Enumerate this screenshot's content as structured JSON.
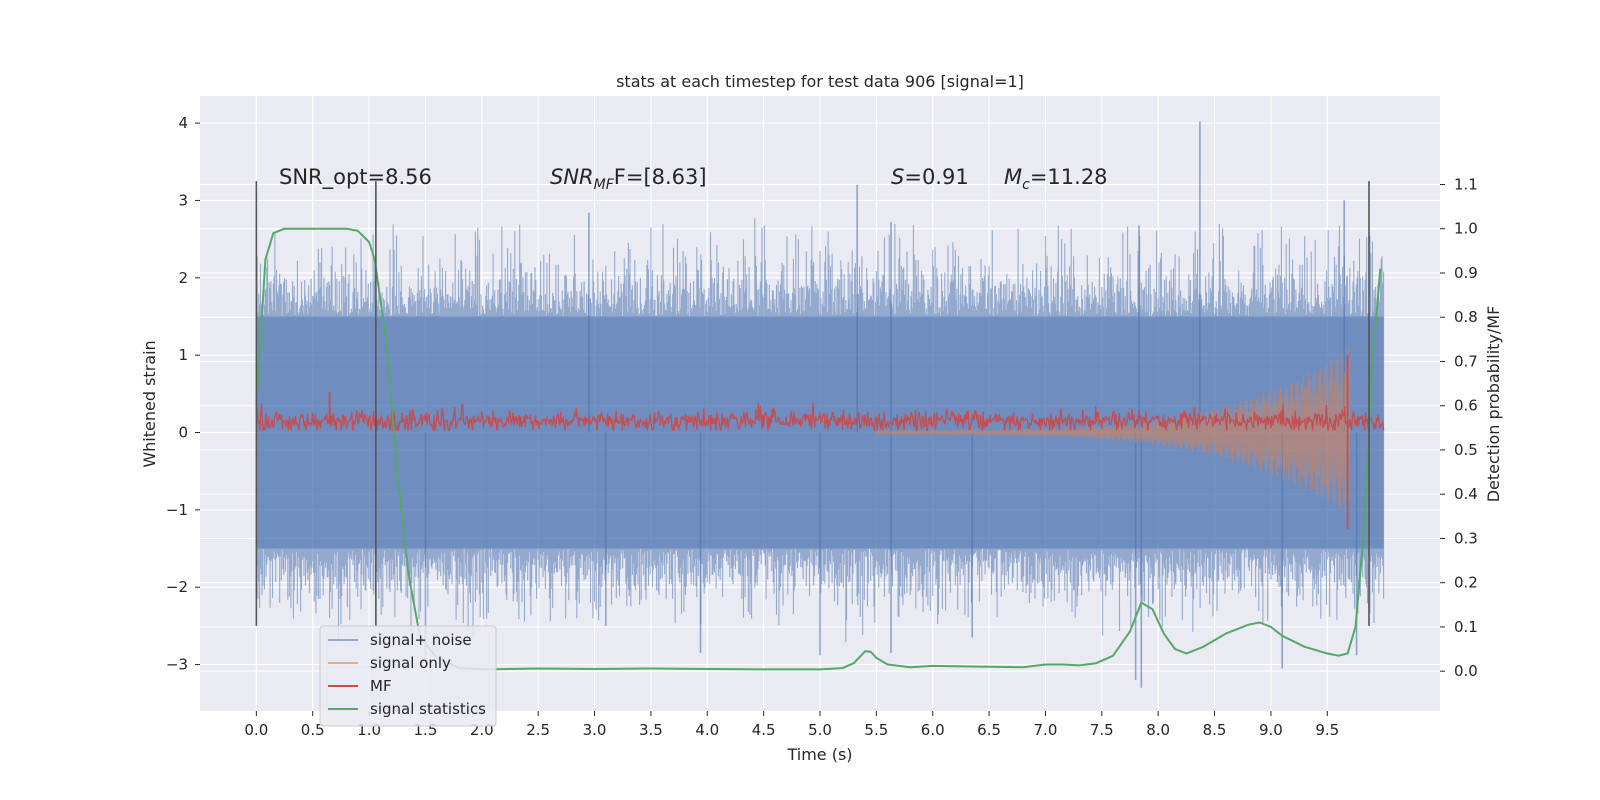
{
  "chart_data": {
    "type": "line",
    "title": "stats at each timestep for test data 906 [signal=1]",
    "xlabel": "Time (s)",
    "ylabel": "Whitened strain",
    "ylabel_right": "Detection probability/MF",
    "xlim": [
      -0.5,
      10.5
    ],
    "ylim": [
      -3.6,
      4.35
    ],
    "ylim_right": [
      -0.09,
      1.3
    ],
    "x_ticks": [
      "0.0",
      "0.5",
      "1.0",
      "1.5",
      "2.0",
      "2.5",
      "3.0",
      "3.5",
      "4.0",
      "4.5",
      "5.0",
      "5.5",
      "6.0",
      "6.5",
      "7.0",
      "7.5",
      "8.0",
      "8.5",
      "9.0",
      "9.5"
    ],
    "x_tick_values": [
      0,
      0.5,
      1,
      1.5,
      2,
      2.5,
      3,
      3.5,
      4,
      4.5,
      5,
      5.5,
      6,
      6.5,
      7,
      7.5,
      8,
      8.5,
      9,
      9.5
    ],
    "y_ticks": [
      "4",
      "3",
      "2",
      "1",
      "0",
      "−1",
      "−2",
      "−3"
    ],
    "y_tick_values": [
      4,
      3,
      2,
      1,
      0,
      -1,
      -2,
      -3
    ],
    "y_right_ticks": [
      "1.1",
      "1.0",
      "0.9",
      "0.8",
      "0.7",
      "0.6",
      "0.5",
      "0.4",
      "0.3",
      "0.2",
      "0.1",
      "0.0"
    ],
    "y_right_tick_values": [
      1.1,
      1.0,
      0.9,
      0.8,
      0.7,
      0.6,
      0.5,
      0.4,
      0.3,
      0.2,
      0.1,
      0.0
    ],
    "annotations": {
      "snr_opt": "SNR_opt=8.56",
      "snr_mf_sym": "SNR",
      "snr_mf_sub": "MF",
      "snr_mf_rest": "F=[8.63]",
      "s_sym": "S",
      "s_val": "=0.91",
      "mc_sym": "M",
      "mc_sub": "c",
      "mc_val": "=11.28"
    },
    "vlines": [
      {
        "x": 0.0,
        "y0": -2.5,
        "y1": 3.25
      },
      {
        "x": 1.06,
        "y0": -2.5,
        "y1": 3.25
      },
      {
        "x": 9.87,
        "y0": -2.5,
        "y1": 3.25
      }
    ],
    "legend": {
      "position": "lower-left",
      "items": [
        {
          "label": "signal+ noise",
          "color": "#4c72b0",
          "alpha": 0.55
        },
        {
          "label": "signal only",
          "color": "#dd8452",
          "alpha": 0.6
        },
        {
          "label": "MF",
          "color": "#c44e52",
          "alpha": 1
        },
        {
          "label": "signal statistics",
          "color": "#55a868",
          "alpha": 1
        }
      ]
    },
    "series": [
      {
        "name": "signal+ noise",
        "color": "#4c72b0",
        "x_range": [
          0.0,
          10.0
        ],
        "envelope": {
          "upper_typical": 1.5,
          "lower_typical": -1.5,
          "upper_peak": 2.7,
          "lower_peak": -2.5
        },
        "spikes": [
          {
            "x": 8.37,
            "y": 4.02
          },
          {
            "x": 5.33,
            "y": 3.2
          },
          {
            "x": 5.63,
            "y": 2.72
          },
          {
            "x": 2.95,
            "y": 2.84
          },
          {
            "x": 9.65,
            "y": 3.0
          },
          {
            "x": 7.83,
            "y": 2.68
          },
          {
            "x": 7.8,
            "y": -3.2
          },
          {
            "x": 7.85,
            "y": -3.3
          },
          {
            "x": 9.1,
            "y": -3.05
          },
          {
            "x": 3.94,
            "y": -2.85
          },
          {
            "x": 5.0,
            "y": -2.88
          },
          {
            "x": 5.63,
            "y": -2.85
          },
          {
            "x": 9.76,
            "y": -2.88
          },
          {
            "x": 6.35,
            "y": -2.65
          },
          {
            "x": 1.5,
            "y": -2.95
          },
          {
            "x": 3.1,
            "y": -2.5
          }
        ]
      },
      {
        "name": "signal only",
        "color": "#dd8452",
        "x_range": [
          5.5,
          9.7
        ],
        "amplitude_start": 0.03,
        "amplitude_end": 1.1
      },
      {
        "name": "MF",
        "color": "#c44e52",
        "x_range": [
          0.0,
          10.0
        ],
        "center": 0.15,
        "band": [
          0.03,
          0.3
        ],
        "spikes": [
          {
            "x": 0.65,
            "y": 0.52
          },
          {
            "x": 9.68,
            "y": 1.0
          },
          {
            "x": 9.68,
            "y": -1.25
          }
        ]
      },
      {
        "name": "signal statistics",
        "color": "#55a868",
        "axis": "right",
        "x": [
          0.0,
          0.03,
          0.08,
          0.15,
          0.25,
          0.4,
          0.6,
          0.8,
          0.9,
          1.0,
          1.05,
          1.15,
          1.25,
          1.35,
          1.45,
          1.6,
          1.8,
          2.0,
          2.5,
          3.0,
          3.5,
          4.0,
          4.5,
          5.0,
          5.2,
          5.3,
          5.4,
          5.45,
          5.5,
          5.6,
          5.8,
          6.0,
          6.2,
          6.5,
          6.8,
          7.0,
          7.15,
          7.3,
          7.45,
          7.6,
          7.75,
          7.85,
          7.95,
          8.05,
          8.15,
          8.25,
          8.4,
          8.6,
          8.8,
          8.9,
          9.0,
          9.1,
          9.3,
          9.5,
          9.6,
          9.68,
          9.75,
          9.82,
          9.9,
          9.97
        ],
        "y": [
          0.6,
          0.72,
          0.93,
          0.99,
          1.0,
          1.0,
          1.0,
          1.0,
          0.995,
          0.97,
          0.93,
          0.75,
          0.45,
          0.22,
          0.08,
          0.03,
          0.007,
          0.004,
          0.006,
          0.005,
          0.006,
          0.005,
          0.004,
          0.004,
          0.007,
          0.018,
          0.045,
          0.044,
          0.03,
          0.015,
          0.009,
          0.012,
          0.011,
          0.01,
          0.009,
          0.015,
          0.015,
          0.013,
          0.018,
          0.035,
          0.09,
          0.155,
          0.14,
          0.085,
          0.05,
          0.04,
          0.055,
          0.085,
          0.105,
          0.11,
          0.1,
          0.08,
          0.055,
          0.04,
          0.035,
          0.04,
          0.1,
          0.3,
          0.7,
          0.91
        ]
      }
    ]
  }
}
